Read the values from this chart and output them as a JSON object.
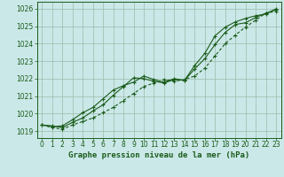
{
  "title": "Graphe pression niveau de la mer (hPa)",
  "bg_color": "#cbe8e8",
  "grid_color": "#99bbaa",
  "line_color": "#1a5c1a",
  "spine_color": "#1a5c1a",
  "xlim": [
    -0.5,
    23.5
  ],
  "ylim": [
    1018.6,
    1026.4
  ],
  "yticks": [
    1019,
    1020,
    1021,
    1022,
    1023,
    1024,
    1025,
    1026
  ],
  "xticks": [
    0,
    1,
    2,
    3,
    4,
    5,
    6,
    7,
    8,
    9,
    10,
    11,
    12,
    13,
    14,
    15,
    16,
    17,
    18,
    19,
    20,
    21,
    22,
    23
  ],
  "hours": [
    0,
    1,
    2,
    3,
    4,
    5,
    6,
    7,
    8,
    9,
    10,
    11,
    12,
    13,
    14,
    15,
    16,
    17,
    18,
    19,
    20,
    21,
    22,
    23
  ],
  "line1": [
    1019.35,
    1019.3,
    1019.2,
    1019.5,
    1019.75,
    1020.15,
    1020.5,
    1021.05,
    1021.55,
    1022.05,
    1022.0,
    1021.85,
    1021.75,
    1021.95,
    1021.9,
    1022.55,
    1023.15,
    1023.95,
    1024.65,
    1025.1,
    1025.2,
    1025.5,
    1025.75,
    1025.95
  ],
  "line2": [
    1019.35,
    1019.2,
    1019.1,
    1019.35,
    1019.55,
    1019.75,
    1020.05,
    1020.35,
    1020.75,
    1021.15,
    1021.55,
    1021.75,
    1021.95,
    1021.85,
    1021.95,
    1022.15,
    1022.6,
    1023.3,
    1024.0,
    1024.5,
    1024.95,
    1025.35,
    1025.75,
    1025.85
  ],
  "line3": [
    1019.35,
    1019.25,
    1019.3,
    1019.65,
    1020.05,
    1020.35,
    1020.85,
    1021.35,
    1021.6,
    1021.8,
    1022.15,
    1021.95,
    1021.8,
    1022.0,
    1021.9,
    1022.75,
    1023.45,
    1024.45,
    1024.95,
    1025.25,
    1025.45,
    1025.6,
    1025.7,
    1026.0
  ],
  "tick_fontsize": 5.5,
  "label_fontsize": 6.5
}
